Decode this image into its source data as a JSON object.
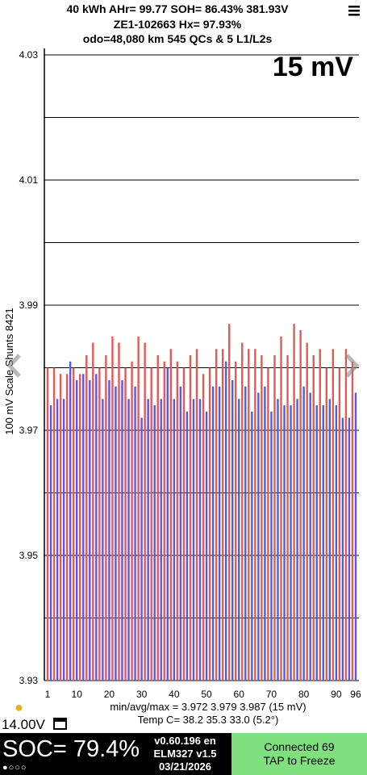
{
  "header": {
    "line1": "40 kWh  AHr= 99.77  SOH= 86.43%   381.93V",
    "line2": "ZE1-102663   Hx= 97.93%",
    "line3": "odo=48,080 km 545 QCs & 5 L1/L2s"
  },
  "chart_data": {
    "type": "bar",
    "corner_label": "15 mV",
    "ylabel": "100 mV Scale Shunts 8421",
    "x": [
      1,
      2,
      3,
      4,
      5,
      6,
      7,
      8,
      9,
      10,
      11,
      12,
      13,
      14,
      15,
      16,
      17,
      18,
      19,
      20,
      21,
      22,
      23,
      24,
      25,
      26,
      27,
      28,
      29,
      30,
      31,
      32,
      33,
      34,
      35,
      36,
      37,
      38,
      39,
      40,
      41,
      42,
      43,
      44,
      45,
      46,
      47,
      48,
      49,
      50,
      51,
      52,
      53,
      54,
      55,
      56,
      57,
      58,
      59,
      60,
      61,
      62,
      63,
      64,
      65,
      66,
      67,
      68,
      69,
      70,
      71,
      72,
      73,
      74,
      75,
      76,
      77,
      78,
      79,
      80,
      81,
      82,
      83,
      84,
      85,
      86,
      87,
      88,
      89,
      90,
      91,
      92,
      93,
      94,
      95,
      96
    ],
    "values": [
      3.98,
      3.974,
      3.98,
      3.975,
      3.979,
      3.975,
      3.979,
      3.981,
      3.98,
      3.978,
      3.979,
      3.979,
      3.982,
      3.978,
      3.984,
      3.979,
      3.98,
      3.975,
      3.982,
      3.978,
      3.985,
      3.977,
      3.984,
      3.978,
      3.98,
      3.975,
      3.981,
      3.977,
      3.985,
      3.972,
      3.984,
      3.975,
      3.98,
      3.974,
      3.982,
      3.975,
      3.981,
      3.98,
      3.983,
      3.975,
      3.981,
      3.977,
      3.98,
      3.973,
      3.982,
      3.975,
      3.983,
      3.975,
      3.979,
      3.973,
      3.98,
      3.977,
      3.983,
      3.977,
      3.983,
      3.981,
      3.987,
      3.978,
      3.981,
      3.975,
      3.984,
      3.977,
      3.983,
      3.973,
      3.983,
      3.976,
      3.982,
      3.977,
      3.98,
      3.973,
      3.982,
      3.975,
      3.985,
      3.974,
      3.982,
      3.974,
      3.987,
      3.975,
      3.986,
      3.977,
      3.984,
      3.976,
      3.982,
      3.974,
      3.983,
      3.974,
      3.98,
      3.975,
      3.983,
      3.974,
      3.98,
      3.972,
      3.983,
      3.972,
      3.981,
      3.976
    ],
    "colors": [
      "#e05a5a",
      "#5a5ae0"
    ],
    "xlim": [
      0,
      97
    ],
    "xticks": [
      1,
      10,
      20,
      30,
      40,
      50,
      60,
      70,
      80,
      90,
      96
    ],
    "ylim": [
      3.93,
      4.03
    ],
    "yticks": [
      3.93,
      3.95,
      3.97,
      3.99,
      4.01,
      4.03
    ],
    "ygrid": [
      3.94,
      3.96,
      3.98,
      4.0,
      4.02
    ],
    "grid": true,
    "stats": "min/avg/max = 3.972 3.979 3.987  (15 mV)",
    "temp": "Temp C= 38.2  35.3  33.0  (5.2°)"
  },
  "status": {
    "voltage": "14.00V",
    "soc": "SOC= 79.4%",
    "version": "v0.60.196 en",
    "adapter": "ELM327 v1.5",
    "date": "03/21/2026",
    "connected": "Connected 69",
    "action": "TAP to Freeze"
  }
}
